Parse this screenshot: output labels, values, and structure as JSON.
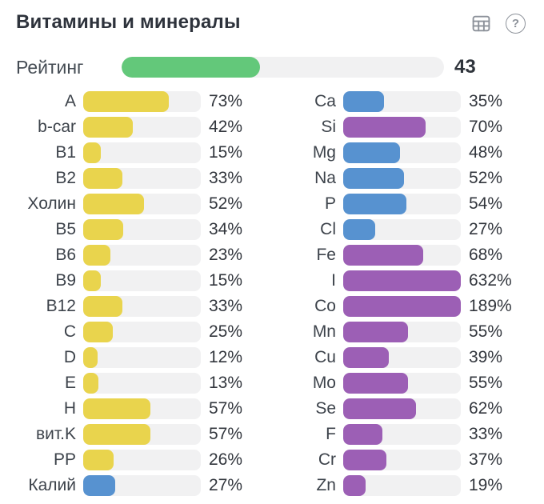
{
  "header": {
    "title": "Витамины и минералы"
  },
  "toolbar": {
    "table_icon": "table-icon",
    "help_icon": "help-icon",
    "help_glyph": "?"
  },
  "rating": {
    "label": "Рейтинг",
    "value": 43,
    "display": "43",
    "max": 100,
    "color": "green"
  },
  "colors": {
    "yellow": "#e9d44d",
    "blue": "#5792d0",
    "purple": "#9c5fb5",
    "green": "#63c87a",
    "track": "#f1f1f2"
  },
  "columns": {
    "vitamins": {
      "items": [
        {
          "label": "A",
          "value": 73,
          "percent": "73%",
          "color": "yellow"
        },
        {
          "label": "b-car",
          "value": 42,
          "percent": "42%",
          "color": "yellow"
        },
        {
          "label": "B1",
          "value": 15,
          "percent": "15%",
          "color": "yellow"
        },
        {
          "label": "B2",
          "value": 33,
          "percent": "33%",
          "color": "yellow"
        },
        {
          "label": "Холин",
          "value": 52,
          "percent": "52%",
          "color": "yellow"
        },
        {
          "label": "B5",
          "value": 34,
          "percent": "34%",
          "color": "yellow"
        },
        {
          "label": "B6",
          "value": 23,
          "percent": "23%",
          "color": "yellow"
        },
        {
          "label": "B9",
          "value": 15,
          "percent": "15%",
          "color": "yellow"
        },
        {
          "label": "B12",
          "value": 33,
          "percent": "33%",
          "color": "yellow"
        },
        {
          "label": "C",
          "value": 25,
          "percent": "25%",
          "color": "yellow"
        },
        {
          "label": "D",
          "value": 12,
          "percent": "12%",
          "color": "yellow"
        },
        {
          "label": "E",
          "value": 13,
          "percent": "13%",
          "color": "yellow"
        },
        {
          "label": "H",
          "value": 57,
          "percent": "57%",
          "color": "yellow"
        },
        {
          "label": "вит.K",
          "value": 57,
          "percent": "57%",
          "color": "yellow"
        },
        {
          "label": "PP",
          "value": 26,
          "percent": "26%",
          "color": "yellow"
        },
        {
          "label": "Калий",
          "value": 27,
          "percent": "27%",
          "color": "blue"
        }
      ]
    },
    "minerals": {
      "items": [
        {
          "label": "Ca",
          "value": 35,
          "percent": "35%",
          "color": "blue"
        },
        {
          "label": "Si",
          "value": 70,
          "percent": "70%",
          "color": "purple"
        },
        {
          "label": "Mg",
          "value": 48,
          "percent": "48%",
          "color": "blue"
        },
        {
          "label": "Na",
          "value": 52,
          "percent": "52%",
          "color": "blue"
        },
        {
          "label": "P",
          "value": 54,
          "percent": "54%",
          "color": "blue"
        },
        {
          "label": "Cl",
          "value": 27,
          "percent": "27%",
          "color": "blue"
        },
        {
          "label": "Fe",
          "value": 68,
          "percent": "68%",
          "color": "purple"
        },
        {
          "label": "I",
          "value": 632,
          "percent": "632%",
          "color": "purple"
        },
        {
          "label": "Co",
          "value": 189,
          "percent": "189%",
          "color": "purple"
        },
        {
          "label": "Mn",
          "value": 55,
          "percent": "55%",
          "color": "purple"
        },
        {
          "label": "Cu",
          "value": 39,
          "percent": "39%",
          "color": "purple"
        },
        {
          "label": "Mo",
          "value": 55,
          "percent": "55%",
          "color": "purple"
        },
        {
          "label": "Se",
          "value": 62,
          "percent": "62%",
          "color": "purple"
        },
        {
          "label": "F",
          "value": 33,
          "percent": "33%",
          "color": "purple"
        },
        {
          "label": "Cr",
          "value": 37,
          "percent": "37%",
          "color": "purple"
        },
        {
          "label": "Zn",
          "value": 19,
          "percent": "19%",
          "color": "purple"
        }
      ]
    }
  },
  "chart_data": {
    "type": "bar",
    "title": "Витамины и минералы",
    "subtitle_metric": {
      "label": "Рейтинг",
      "value": 43,
      "max": 100
    },
    "unit": "%",
    "orientation": "horizontal",
    "xlim": [
      0,
      100
    ],
    "note": "bar fill capped at 100%; values above 100% shown as full bars",
    "legend_position": "none",
    "grid": false,
    "series": [
      {
        "name": "Витамины",
        "categories": [
          "A",
          "b-car",
          "B1",
          "B2",
          "Холин",
          "B5",
          "B6",
          "B9",
          "B12",
          "C",
          "D",
          "E",
          "H",
          "вит.K",
          "PP",
          "Калий"
        ],
        "values": [
          73,
          42,
          15,
          33,
          52,
          34,
          23,
          15,
          33,
          25,
          12,
          13,
          57,
          57,
          26,
          27
        ],
        "bar_colors": [
          "#e9d44d",
          "#e9d44d",
          "#e9d44d",
          "#e9d44d",
          "#e9d44d",
          "#e9d44d",
          "#e9d44d",
          "#e9d44d",
          "#e9d44d",
          "#e9d44d",
          "#e9d44d",
          "#e9d44d",
          "#e9d44d",
          "#e9d44d",
          "#e9d44d",
          "#5792d0"
        ]
      },
      {
        "name": "Минералы",
        "categories": [
          "Ca",
          "Si",
          "Mg",
          "Na",
          "P",
          "Cl",
          "Fe",
          "I",
          "Co",
          "Mn",
          "Cu",
          "Mo",
          "Se",
          "F",
          "Cr",
          "Zn"
        ],
        "values": [
          35,
          70,
          48,
          52,
          54,
          27,
          68,
          632,
          189,
          55,
          39,
          55,
          62,
          33,
          37,
          19
        ],
        "bar_colors": [
          "#5792d0",
          "#9c5fb5",
          "#5792d0",
          "#5792d0",
          "#5792d0",
          "#5792d0",
          "#9c5fb5",
          "#9c5fb5",
          "#9c5fb5",
          "#9c5fb5",
          "#9c5fb5",
          "#9c5fb5",
          "#9c5fb5",
          "#9c5fb5",
          "#9c5fb5",
          "#9c5fb5"
        ]
      }
    ]
  }
}
